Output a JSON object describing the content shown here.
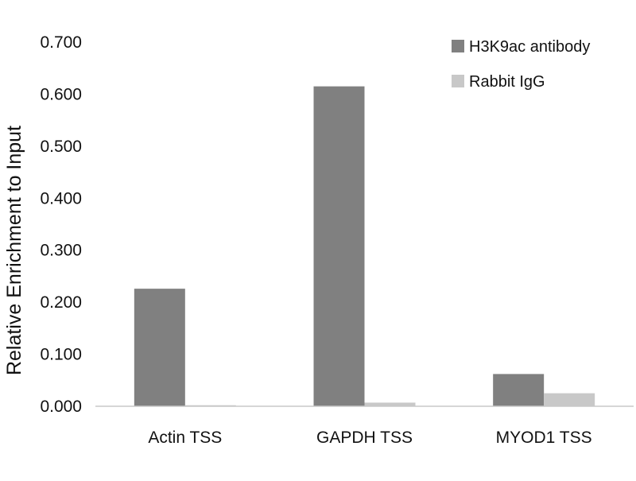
{
  "chart_data": {
    "type": "bar",
    "title": "",
    "xlabel": "",
    "ylabel": "Relative Enrichment to Input",
    "ylim": [
      0,
      0.7
    ],
    "yticks": [
      "0.000",
      "0.100",
      "0.200",
      "0.300",
      "0.400",
      "0.500",
      "0.600",
      "0.700"
    ],
    "categories": [
      "Actin TSS",
      "GAPDH TSS",
      "MYOD1 TSS"
    ],
    "series": [
      {
        "name": "H3K9ac antibody",
        "color": "#808080",
        "values": [
          0.226,
          0.615,
          0.062
        ]
      },
      {
        "name": "Rabbit IgG",
        "color": "#c8c8c8",
        "values": [
          0.002,
          0.007,
          0.025
        ]
      }
    ],
    "grid": false,
    "legend_position": "top-right"
  }
}
